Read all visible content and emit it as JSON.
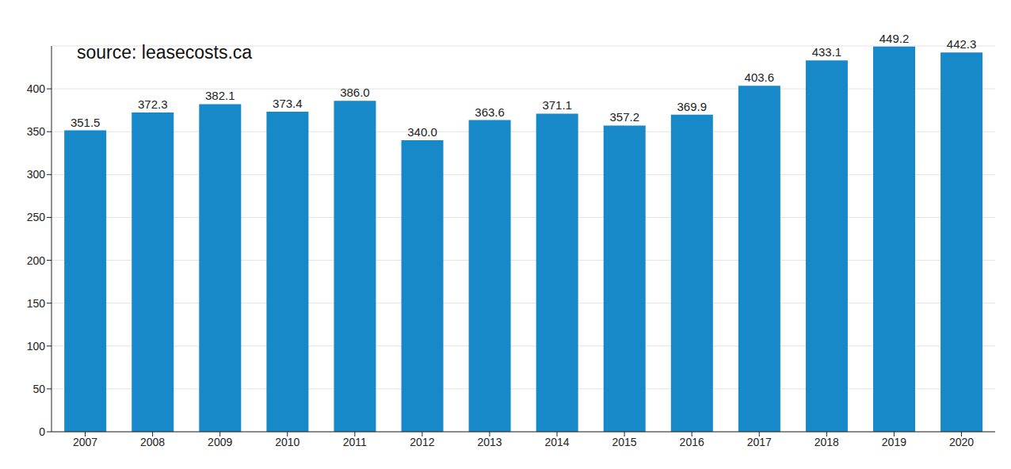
{
  "chart_data": {
    "type": "bar",
    "annotation": "source: leasecosts.ca",
    "categories": [
      "2007",
      "2008",
      "2009",
      "2010",
      "2011",
      "2012",
      "2013",
      "2014",
      "2015",
      "2016",
      "2017",
      "2018",
      "2019",
      "2020"
    ],
    "values": [
      351.5,
      372.3,
      382.1,
      373.4,
      386.0,
      340.0,
      363.6,
      371.1,
      357.2,
      369.9,
      403.6,
      433.1,
      449.2,
      442.3
    ],
    "value_labels": [
      "351.5",
      "372.3",
      "382.1",
      "373.4",
      "386.0",
      "340.0",
      "363.6",
      "371.1",
      "357.2",
      "369.9",
      "403.6",
      "433.1",
      "449.2",
      "442.3"
    ],
    "color": "#1789c9",
    "ylim": [
      0,
      450
    ],
    "yticks": [
      0,
      50,
      100,
      150,
      200,
      250,
      300,
      350,
      400
    ],
    "grid": true,
    "data_labels": true
  }
}
